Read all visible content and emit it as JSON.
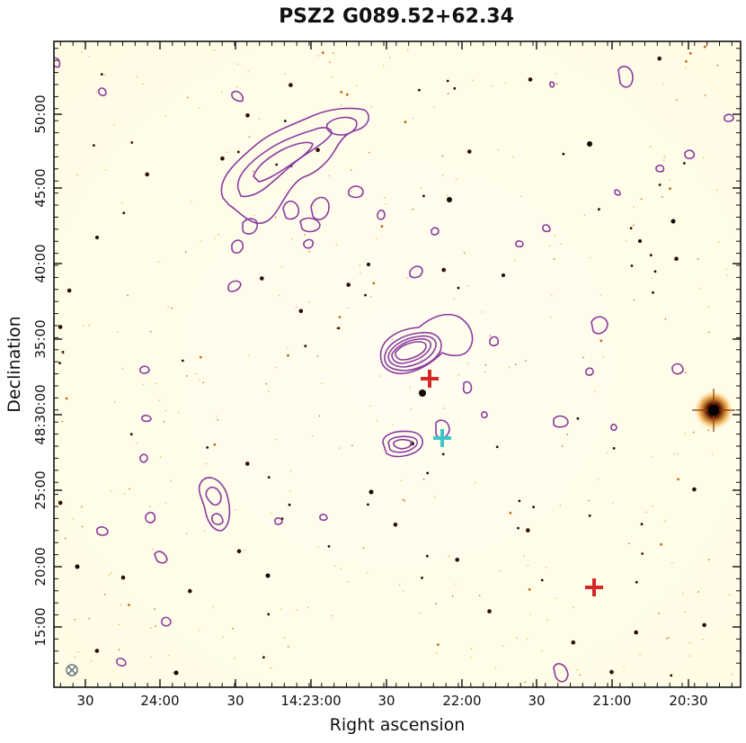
{
  "chart_data": {
    "type": "image",
    "title": "PSZ2 G089.52+62.34",
    "xlabel": "Right ascension",
    "ylabel": "Declination",
    "x_ticks": [
      "30",
      "24:00",
      "30",
      "14:23:00",
      "30",
      "22:00",
      "30",
      "21:00",
      "20:30"
    ],
    "y_ticks": [
      "15:00",
      "20:00",
      "25:00",
      "48:30:00",
      "35:00",
      "40:00",
      "45:00",
      "50:00"
    ],
    "grid": false,
    "background": "optical image, inverted colormap (white → orange → black)",
    "contour_color": "#8a3c9e",
    "markers": [
      {
        "id": "red-cross-1",
        "shape": "+",
        "color": "#d62728",
        "ra": "14:22:15",
        "dec": "48:32:10"
      },
      {
        "id": "cyan-cross",
        "shape": "+",
        "color": "#3fc5c9",
        "ra": "14:22:07",
        "dec": "48:28:10"
      },
      {
        "id": "red-cross-2",
        "shape": "+",
        "color": "#d62728",
        "ra": "14:21:00",
        "dec": "48:18:30"
      }
    ],
    "beam_symbol": {
      "shape": "circle with x",
      "color": "#5c6f80",
      "position": "bottom-left"
    }
  }
}
